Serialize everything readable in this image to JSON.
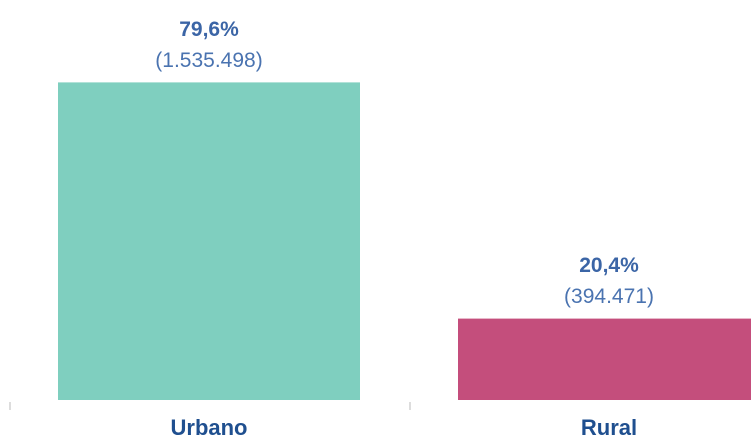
{
  "chart_data": {
    "type": "bar",
    "categories": [
      "Urbano",
      "Rural"
    ],
    "values": [
      79.6,
      20.4
    ],
    "value_labels": [
      "79,6%",
      "20,4%"
    ],
    "counts": [
      1535498,
      394471
    ],
    "count_labels": [
      "(1.535.498)",
      "(394.471)"
    ],
    "colors": [
      "#7fcfbf",
      "#c44e7c"
    ]
  }
}
